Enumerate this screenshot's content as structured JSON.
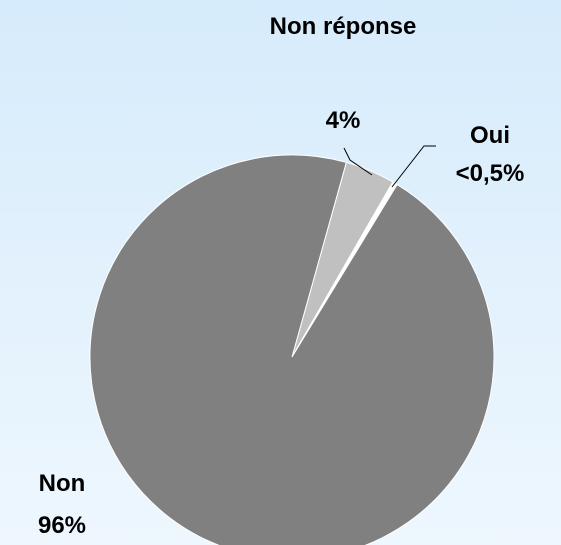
{
  "chart_data": {
    "type": "pie",
    "categories": [
      "Non réponse",
      "Oui",
      "Non"
    ],
    "values": [
      4,
      0.4,
      96
    ],
    "value_labels": [
      "4%",
      "<0,5%",
      "96%"
    ],
    "colors": [
      "#c0c0c0",
      "#ffffff",
      "#808080"
    ]
  }
}
